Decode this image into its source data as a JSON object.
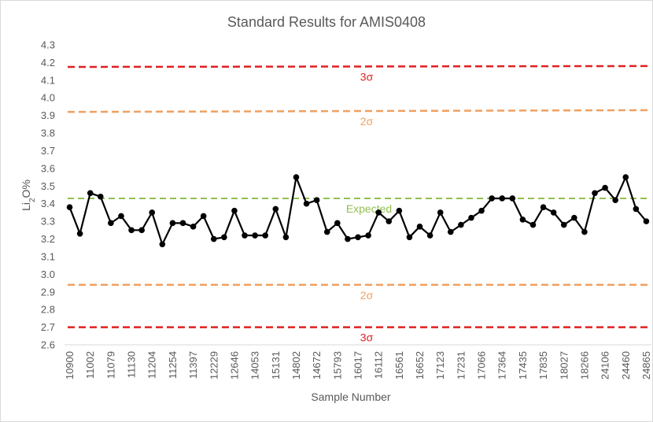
{
  "chart_data": {
    "type": "line",
    "title": "Standard Results for AMIS0408",
    "xlabel": "Sample Number",
    "ylabel_main": "Li",
    "ylabel_sub": "2",
    "ylabel_end": "O%",
    "ylim": [
      2.6,
      4.3
    ],
    "ytick_step": 0.1,
    "yticks": [
      "2.6",
      "2.7",
      "2.8",
      "2.9",
      "3.0",
      "3.1",
      "3.2",
      "3.3",
      "3.4",
      "3.5",
      "3.6",
      "3.7",
      "3.8",
      "3.9",
      "4.0",
      "4.1",
      "4.2",
      "4.3"
    ],
    "grid": false,
    "x_labels": [
      "10900",
      "11002",
      "11079",
      "11130",
      "11204",
      "11254",
      "11397",
      "12229",
      "12646",
      "14053",
      "15131",
      "14802",
      "14672",
      "15793",
      "16017",
      "16112",
      "16561",
      "16652",
      "17123",
      "17231",
      "17066",
      "17364",
      "17435",
      "17835",
      "18027",
      "18266",
      "24106",
      "24460",
      "24865"
    ],
    "series": [
      {
        "color": "#000000",
        "values": [
          3.38,
          3.23,
          3.46,
          3.44,
          3.29,
          3.33,
          3.25,
          3.25,
          3.35,
          3.17,
          3.29,
          3.29,
          3.27,
          3.33,
          3.2,
          3.21,
          3.36,
          3.22,
          3.22,
          3.22,
          3.37,
          3.21,
          3.55,
          3.4,
          3.42,
          3.24,
          3.29,
          3.2,
          3.21,
          3.22,
          3.35,
          3.3,
          3.36,
          3.21,
          3.27,
          3.22,
          3.35,
          3.24,
          3.28,
          3.32,
          3.36,
          3.43,
          3.43,
          3.43,
          3.31,
          3.28,
          3.38,
          3.35,
          3.28,
          3.32,
          3.24,
          3.46,
          3.49,
          3.42,
          3.55,
          3.37,
          3.3
        ]
      }
    ],
    "reference_lines": [
      {
        "label": "3σ",
        "y_start": 4.175,
        "y_end": 4.18,
        "color": "#e02020"
      },
      {
        "label": "2σ",
        "y_start": 3.92,
        "y_end": 3.93,
        "color": "#f0a060"
      },
      {
        "label": "Expected",
        "y_start": 3.43,
        "y_end": 3.43,
        "color": "#92c050"
      },
      {
        "label": "2σ",
        "y_start": 2.94,
        "y_end": 2.94,
        "color": "#f0a060"
      },
      {
        "label": "3σ",
        "y_start": 2.7,
        "y_end": 2.7,
        "color": "#e02020"
      }
    ]
  }
}
